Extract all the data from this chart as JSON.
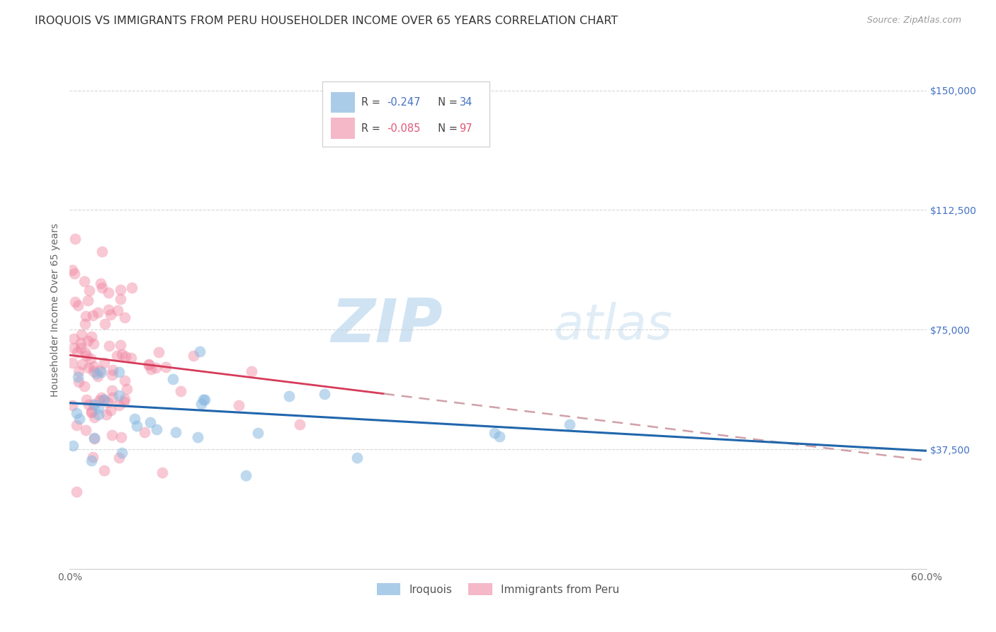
{
  "title": "IROQUOIS VS IMMIGRANTS FROM PERU HOUSEHOLDER INCOME OVER 65 YEARS CORRELATION CHART",
  "source": "Source: ZipAtlas.com",
  "ylabel": "Householder Income Over 65 years",
  "xlim": [
    0.0,
    0.6
  ],
  "ylim": [
    0,
    162500
  ],
  "xticks": [
    0.0,
    0.1,
    0.2,
    0.3,
    0.4,
    0.5,
    0.6
  ],
  "xticklabels": [
    "0.0%",
    "",
    "",
    "",
    "",
    "",
    "60.0%"
  ],
  "ytick_values": [
    0,
    37500,
    75000,
    112500,
    150000
  ],
  "ytick_labels_right": [
    "",
    "$37,500",
    "$75,000",
    "$112,500",
    "$150,000"
  ],
  "r1": -0.247,
  "n1": 34,
  "r2": -0.085,
  "n2": 97,
  "blue_scatter_color": "#89b8e0",
  "pink_scatter_color": "#f086a0",
  "blue_line_color": "#2166ac",
  "pink_line_solid_color": "#d63b5a",
  "pink_line_dash_color": "#d0a0a8",
  "legend_color1": "#aacce8",
  "legend_color2": "#f4b8c8",
  "watermark_zip": "ZIP",
  "watermark_atlas": "atlas",
  "background_color": "#ffffff",
  "grid_color": "#cccccc",
  "title_fontsize": 11.5,
  "tick_fontsize": 10,
  "blue_seed": 42,
  "pink_seed": 123,
  "blue_line_y0": 52000,
  "blue_line_y1": 37000,
  "pink_line_y0": 67000,
  "pink_line_y_at20pct": 58000,
  "pink_line_y1": 34000
}
